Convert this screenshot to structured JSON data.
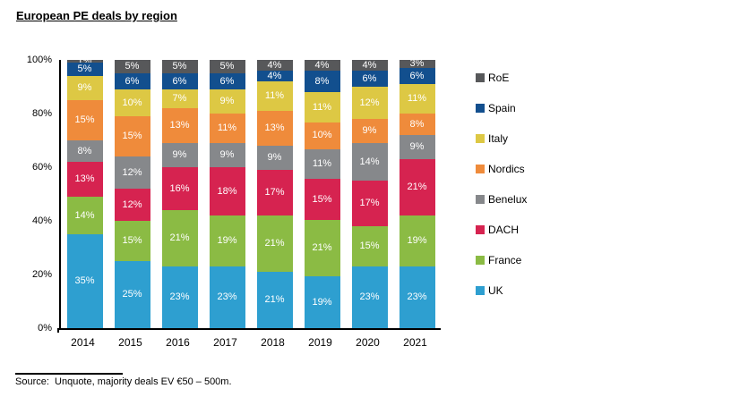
{
  "title": "European PE deals by region",
  "source_note": "Source:  Unquote, majority deals EV €50 – 500m.",
  "chart_data": {
    "type": "bar",
    "stacked": true,
    "unit": "%",
    "title": "European PE deals by region",
    "categories": [
      "2014",
      "2015",
      "2016",
      "2017",
      "2018",
      "2019",
      "2020",
      "2021"
    ],
    "series": [
      {
        "name": "UK",
        "color": "#2e9fd0",
        "values": [
          35,
          25,
          23,
          23,
          21,
          19,
          23,
          23
        ]
      },
      {
        "name": "France",
        "color": "#8bbb44",
        "values": [
          14,
          15,
          21,
          19,
          21,
          21,
          15,
          19
        ]
      },
      {
        "name": "DACH",
        "color": "#d62350",
        "values": [
          13,
          12,
          16,
          18,
          17,
          15,
          17,
          21
        ]
      },
      {
        "name": "Benelux",
        "color": "#86888b",
        "values": [
          8,
          12,
          9,
          9,
          9,
          11,
          14,
          9
        ]
      },
      {
        "name": "Nordics",
        "color": "#ef8b3b",
        "values": [
          15,
          15,
          13,
          11,
          13,
          10,
          9,
          8
        ]
      },
      {
        "name": "Italy",
        "color": "#ddc844",
        "values": [
          9,
          10,
          7,
          9,
          11,
          11,
          12,
          11
        ]
      },
      {
        "name": "Spain",
        "color": "#124f8e",
        "values": [
          5,
          6,
          6,
          6,
          4,
          8,
          6,
          6
        ]
      },
      {
        "name": "RoE",
        "color": "#57585a",
        "values": [
          1,
          5,
          5,
          5,
          4,
          4,
          4,
          3
        ]
      }
    ],
    "y_ticks": [
      "100%",
      "80%",
      "60%",
      "40%",
      "20%",
      "0%"
    ],
    "ylim": [
      0,
      100
    ],
    "grid": false,
    "legend_position": "right",
    "legend_order": [
      "RoE",
      "Spain",
      "Italy",
      "Nordics",
      "Benelux",
      "DACH",
      "France",
      "UK"
    ],
    "data_label_color": "#ffffff",
    "axis_color": "#000000"
  }
}
